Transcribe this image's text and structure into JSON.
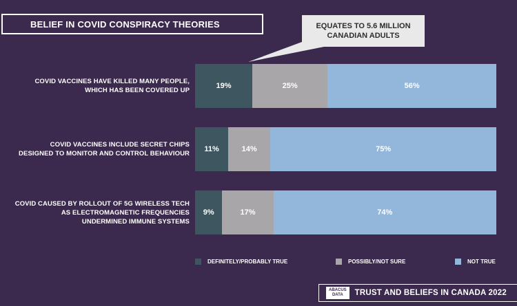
{
  "header": {
    "title": "BELIEF IN COVID CONSPIRACY THEORIES"
  },
  "callout": {
    "line1": "EQUATES TO 5.6 MILLION",
    "line2": "CANADIAN ADULTS"
  },
  "chart_data": {
    "type": "bar",
    "orientation": "horizontal",
    "stacked": true,
    "title": "BELIEF IN COVID CONSPIRACY THEORIES",
    "categories": [
      "COVID VACCINES HAVE KILLED MANY PEOPLE, WHICH HAS BEEN COVERED UP",
      "COVID VACCINES INCLUDE SECRET CHIPS DESIGNED TO MONITOR AND CONTROL BEHAVIOUR",
      "COVID CAUSED BY ROLLOUT OF 5G WIRELESS TECH AS ELECTROMAGNETIC FREQUENCIES UNDERMINED IMMUNE SYSTEMS"
    ],
    "category_lines": [
      [
        "COVID VACCINES HAVE KILLED MANY PEOPLE,",
        "WHICH HAS BEEN COVERED UP"
      ],
      [
        "COVID VACCINES INCLUDE SECRET CHIPS",
        "DESIGNED TO MONITOR AND CONTROL BEHAVIOUR"
      ],
      [
        "COVID CAUSED BY ROLLOUT OF 5G WIRELESS TECH",
        "AS ELECTROMAGNETIC FREQUENCIES",
        "UNDERMINED IMMUNE SYSTEMS"
      ]
    ],
    "series": [
      {
        "name": "DEFINITELY/PROBABLY TRUE",
        "values": [
          19,
          11,
          9
        ],
        "color": "#3e5660"
      },
      {
        "name": "POSSIBLY/NOT SURE",
        "values": [
          25,
          14,
          17
        ],
        "color": "#a8a6a8"
      },
      {
        "name": "NOT TRUE",
        "values": [
          56,
          75,
          74
        ],
        "color": "#93b6db"
      }
    ],
    "value_suffix": "%",
    "legend_position": "bottom"
  },
  "footer": {
    "logo_line1": "ABACUS",
    "logo_line2": "DATA",
    "text": "TRUST AND BELIEFS IN CANADA 2022"
  }
}
